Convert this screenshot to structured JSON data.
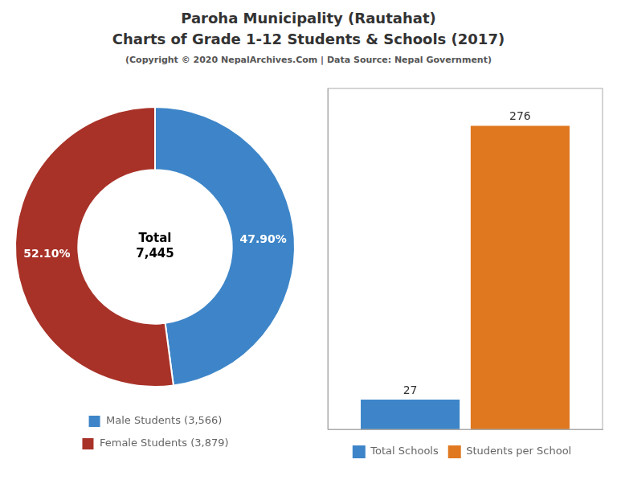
{
  "chart_data": [
    {
      "type": "donut",
      "title": "Paroha Municipality (Rautahat)\nCharts of Grade 1-12 Students & Schools (2017)",
      "subtitle": "(Copyright © 2020 NepalArchives.Com | Data Source: Nepal Government)",
      "categories": [
        "Male Students (3,566)",
        "Female Students (3,879)"
      ],
      "values": [
        47.9,
        52.1
      ],
      "value_labels": [
        "47.90%",
        "52.10%"
      ],
      "colors": [
        "#3d85c8",
        "#a83228"
      ],
      "data_labels": true,
      "annotations": [
        "Total\n7,445"
      ],
      "legend": "bottom"
    },
    {
      "type": "bar",
      "categories": [
        null
      ],
      "series": [
        {
          "name": "Total Schools",
          "color": "#3d85c8",
          "values": [
            27
          ]
        },
        {
          "name": "Students per School",
          "color": "#e07820",
          "values": [
            276
          ]
        }
      ],
      "ylim": [
        0,
        310
      ],
      "yticks": [],
      "tick_labels": false,
      "grid": false,
      "data_labels": true,
      "legend": "bottom"
    }
  ]
}
